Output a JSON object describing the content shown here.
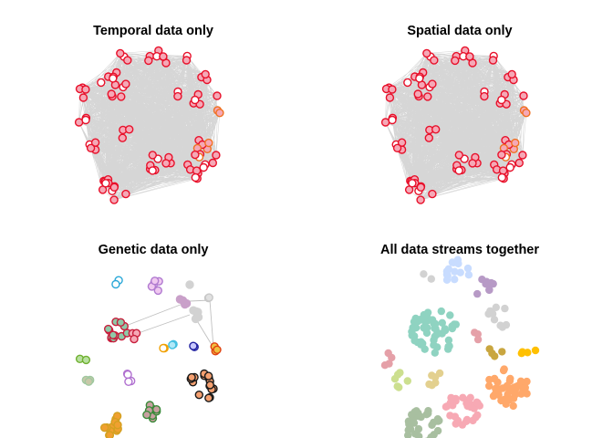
{
  "figure": {
    "panels": [
      {
        "id": "temporal",
        "title": "Temporal data only",
        "style": "dense"
      },
      {
        "id": "spatial",
        "title": "Spatial data only",
        "style": "dense"
      },
      {
        "id": "genetic",
        "title": "Genetic data only",
        "style": "sparse"
      },
      {
        "id": "all",
        "title": "All data streams together",
        "style": "fill"
      }
    ]
  },
  "colors": {
    "edge_dense": "#b4b4b4",
    "edge_sparse": "#c0c0c0",
    "node_fill": "#f5a8b6",
    "node_fill_alt": "#ffffff",
    "node_border_default": "#e8102a",
    "node_border_orange": "#f07020",
    "cluster_colors": [
      "#8fd3c1",
      "#c8dcff",
      "#b79ac6",
      "#d2d2d2",
      "#c9a640",
      "#ffc000",
      "#e5a0a8",
      "#ccdf8f",
      "#e3d08f",
      "#ffa86a",
      "#f7a9b4",
      "#a8bfa0"
    ]
  }
}
